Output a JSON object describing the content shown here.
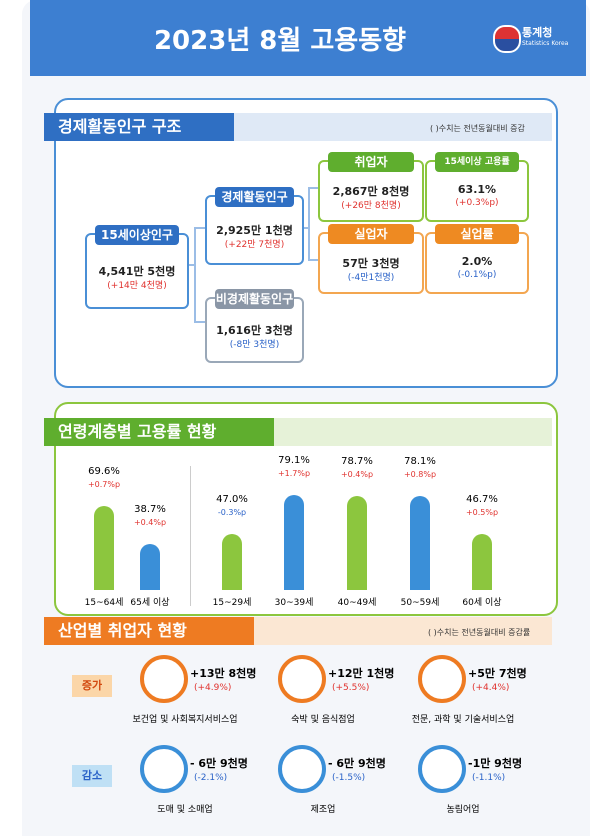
{
  "header": {
    "title": "2023년 8월 고용동향",
    "logo": "통계청",
    "logo_sub": "Statistics Korea"
  },
  "structure": {
    "title": "경제활동인구 구조",
    "note": "( )수치는 전년동월대비 증감",
    "boxes": [
      {
        "label": "15세이상인구",
        "value": "4,541만 5천명",
        "change": "(+14만 4천명)"
      },
      {
        "label": "경제활동인구",
        "value": "2,925만 1천명",
        "change": "(+22만 7천명)"
      },
      {
        "label": "비경제활동인구",
        "value": "1,616만 3천명",
        "change": "(-8만 3천명)"
      },
      {
        "label": "취업자",
        "value": "2,867만 8천명",
        "change": "(+26만 8천명)"
      },
      {
        "label": "15세이상 고용률",
        "value": "63.1%",
        "change": "(+0.3%p)"
      },
      {
        "label": "실업자",
        "value": "57만 3천명",
        "change": "(-4만1천명)"
      },
      {
        "label": "실업률",
        "value": "2.0%",
        "change": "(-0.1%p)"
      }
    ]
  },
  "age": {
    "title": "연령계층별 고용률 현황",
    "categories": [
      "15~64세",
      "65세 이상",
      "15~29세",
      "30~39세",
      "40~49세",
      "50~59세",
      "60세 이상"
    ],
    "values": [
      69.6,
      38.7,
      47.0,
      79.1,
      78.7,
      78.1,
      46.7
    ],
    "value_labels": [
      "69.6%",
      "38.7%",
      "47.0%",
      "79.1%",
      "78.7%",
      "78.1%",
      "46.7%"
    ],
    "changes": [
      "+0.7%p",
      "+0.4%p",
      "-0.3%p",
      "+1.7%p",
      "+0.4%p",
      "+0.8%p",
      "+0.5%p"
    ],
    "colors": [
      "#8cc63e",
      "#3a8fd8",
      "#8cc63e",
      "#3a8fd8",
      "#8cc63e",
      "#3a8fd8",
      "#8cc63e"
    ]
  },
  "industry": {
    "title": "산업별 취업자 현황",
    "note": "( )수치는 전년동월대비 증감률",
    "increase": {
      "label": "증가",
      "items": [
        {
          "name": "보건업 및 사회복지서비스업",
          "value": "+13만 8천명",
          "rate": "(+4.9%)"
        },
        {
          "name": "숙박 및 음식점업",
          "value": "+12만 1천명",
          "rate": "(+5.5%)"
        },
        {
          "name": "전문, 과학 및 기술서비스업",
          "value": "+5만 7천명",
          "rate": "(+4.4%)"
        }
      ]
    },
    "decrease": {
      "label": "감소",
      "items": [
        {
          "name": "도매 및 소매업",
          "value": "- 6만 9천명",
          "rate": "(-2.1%)"
        },
        {
          "name": "제조업",
          "value": "- 6만 9천명",
          "rate": "(-1.5%)"
        },
        {
          "name": "농림어업",
          "value": "-1만 9천명",
          "rate": "(-1.1%)"
        }
      ]
    }
  }
}
